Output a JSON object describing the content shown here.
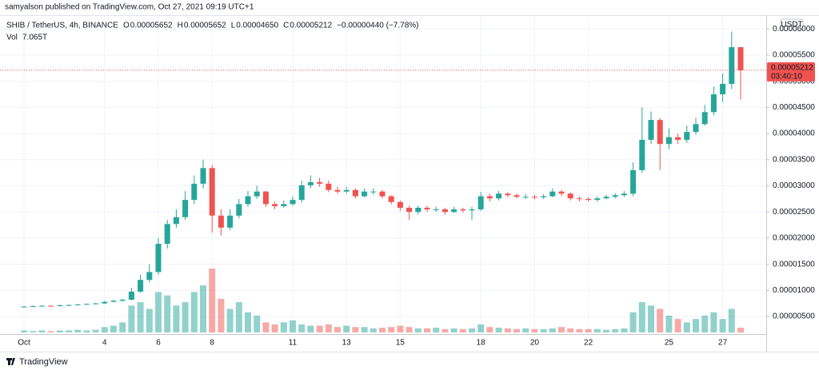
{
  "header": {
    "text": "samyalson published on TradingView.com, Oct 27, 2021 09:19 UTC+1"
  },
  "footer": {
    "brand": "TradingView"
  },
  "chart_data": {
    "type": "candlestick",
    "symbol": "SHIB / TetherUS, 4h, BINANCE",
    "ohlc_legend": [
      {
        "label": "O",
        "value": "0.00005652"
      },
      {
        "label": "H",
        "value": "0.00005652"
      },
      {
        "label": "L",
        "value": "0.00004650"
      },
      {
        "label": "C",
        "value": "0.00005212"
      }
    ],
    "change_label": "−0.00000440 (−7.78%)",
    "volume_legend": {
      "name": "Vol",
      "value_label": "7.065T"
    },
    "currency": "USDT",
    "last_price_label": "0.00005212",
    "countdown": "03:40:10",
    "up_color": "#26a69a",
    "down_color": "#ef5350",
    "grid": true,
    "categories": [
      "Oct",
      null,
      null,
      null,
      null,
      null,
      null,
      null,
      null,
      "4",
      null,
      null,
      null,
      null,
      null,
      "6",
      null,
      null,
      null,
      null,
      null,
      "8",
      null,
      null,
      null,
      null,
      null,
      null,
      null,
      null,
      "11",
      null,
      null,
      null,
      null,
      null,
      "13",
      null,
      null,
      null,
      null,
      null,
      "15",
      null,
      null,
      null,
      null,
      null,
      null,
      null,
      null,
      "18",
      null,
      null,
      null,
      null,
      null,
      "20",
      null,
      null,
      null,
      null,
      null,
      "22",
      null,
      null,
      null,
      null,
      null,
      null,
      null,
      null,
      "25",
      null,
      null,
      null,
      null,
      null,
      "27",
      null,
      null
    ],
    "open": [
      6.8e-06,
      6.9e-06,
      7e-06,
      7.05e-06,
      7e-06,
      7.15e-06,
      7.2e-06,
      7.3e-06,
      7.4e-06,
      7.5e-06,
      7.8e-06,
      8e-06,
      8.2e-06,
      9.75e-06,
      1.2e-05,
      1.35e-05,
      1.89e-05,
      2.27e-05,
      2.4e-05,
      2.73e-05,
      3.04e-05,
      3.34e-05,
      2.43e-05,
      2.2e-05,
      2.43e-05,
      2.65e-05,
      2.8e-05,
      2.89e-05,
      2.65e-05,
      2.61e-05,
      2.65e-05,
      2.73e-05,
      3.01e-05,
      3.07e-05,
      3.04e-05,
      2.92e-05,
      2.89e-05,
      2.92e-05,
      2.8e-05,
      2.89e-05,
      2.89e-05,
      2.8e-05,
      2.69e-05,
      2.58e-05,
      2.5e-05,
      2.58e-05,
      2.55e-05,
      2.55e-05,
      2.5e-05,
      2.55e-05,
      2.53e-05,
      2.55e-05,
      2.8e-05,
      2.76e-05,
      2.85e-05,
      2.82e-05,
      2.79e-05,
      2.79e-05,
      2.78e-05,
      2.8e-05,
      2.89e-05,
      2.85e-05,
      2.76e-05,
      2.75e-05,
      2.73e-05,
      2.76e-05,
      2.79e-05,
      2.82e-05,
      2.85e-05,
      3.3e-05,
      3.88e-05,
      4.26e-05,
      3.8e-05,
      3.93e-05,
      3.88e-05,
      4.03e-05,
      4.18e-05,
      4.41e-05,
      4.75e-05,
      4.95e-05,
      5.652e-05
    ],
    "high": [
      7e-06,
      7.1e-06,
      7.15e-06,
      7.15e-06,
      7.25e-06,
      7.3e-06,
      7.4e-06,
      7.5e-06,
      7.6e-06,
      8e-06,
      8.2e-06,
      8.4e-06,
      1.05e-05,
      1.3e-05,
      1.5e-05,
      2e-05,
      2.35e-05,
      2.55e-05,
      2.9e-05,
      3.2e-05,
      3.5e-05,
      3.4e-05,
      2.55e-05,
      2.55e-05,
      2.75e-05,
      2.9e-05,
      3e-05,
      2.9e-05,
      2.7e-05,
      2.72e-05,
      2.8e-05,
      3.1e-05,
      3.2e-05,
      3.15e-05,
      3.1e-05,
      2.98e-05,
      2.98e-05,
      2.95e-05,
      2.95e-05,
      2.95e-05,
      2.92e-05,
      2.82e-05,
      2.72e-05,
      2.62e-05,
      2.62e-05,
      2.62e-05,
      2.6e-05,
      2.58e-05,
      2.6e-05,
      2.58e-05,
      2.6e-05,
      2.88e-05,
      2.85e-05,
      2.9e-05,
      2.88e-05,
      2.85e-05,
      2.84e-05,
      2.83e-05,
      2.84e-05,
      2.95e-05,
      2.92e-05,
      2.87e-05,
      2.8e-05,
      2.78e-05,
      2.8e-05,
      2.83e-05,
      2.86e-05,
      2.9e-05,
      3.45e-05,
      4.5e-05,
      4.42e-05,
      4.3e-05,
      4.1e-05,
      4e-05,
      4.15e-05,
      4.3e-05,
      4.55e-05,
      4.9e-05,
      5.15e-05,
      5.95e-05,
      5.652e-05
    ],
    "low": [
      6.7e-06,
      6.8e-06,
      6.9e-06,
      6.9e-06,
      6.9e-06,
      7.05e-06,
      7.1e-06,
      7.2e-06,
      7.3e-06,
      7.4e-06,
      7.7e-06,
      7.9e-06,
      8.1e-06,
      9.5e-06,
      1.15e-05,
      1.3e-05,
      1.8e-05,
      2.2e-05,
      2.35e-05,
      2.65e-05,
      2.95e-05,
      2.1e-05,
      2.05e-05,
      2.15e-05,
      2.38e-05,
      2.6e-05,
      2.75e-05,
      2.6e-05,
      2.55e-05,
      2.58e-05,
      2.62e-05,
      2.68e-05,
      2.95e-05,
      2.98e-05,
      2.88e-05,
      2.85e-05,
      2.85e-05,
      2.76e-05,
      2.78e-05,
      2.83e-05,
      2.76e-05,
      2.65e-05,
      2.52e-05,
      2.35e-05,
      2.45e-05,
      2.5e-05,
      2.5e-05,
      2.45e-05,
      2.48e-05,
      2.49e-05,
      2.35e-05,
      2.52e-05,
      2.7e-05,
      2.72e-05,
      2.78e-05,
      2.76e-05,
      2.75e-05,
      2.74e-05,
      2.75e-05,
      2.78e-05,
      2.8e-05,
      2.72e-05,
      2.7e-05,
      2.7e-05,
      2.7e-05,
      2.74e-05,
      2.76e-05,
      2.79e-05,
      2.8e-05,
      3.25e-05,
      3.8e-05,
      3.3e-05,
      3.7e-05,
      3.8e-05,
      3.82e-05,
      3.98e-05,
      4.15e-05,
      4.35e-05,
      4.6e-05,
      4.85e-05,
      4.65e-05
    ],
    "close": [
      6.9e-06,
      7e-06,
      7.05e-06,
      7e-06,
      7.15e-06,
      7.2e-06,
      7.3e-06,
      7.4e-06,
      7.5e-06,
      7.8e-06,
      8e-06,
      8.2e-06,
      9.75e-06,
      1.2e-05,
      1.35e-05,
      1.89e-05,
      2.27e-05,
      2.4e-05,
      2.73e-05,
      3.04e-05,
      3.34e-05,
      2.43e-05,
      2.2e-05,
      2.43e-05,
      2.65e-05,
      2.8e-05,
      2.89e-05,
      2.65e-05,
      2.61e-05,
      2.65e-05,
      2.73e-05,
      3.01e-05,
      3.07e-05,
      3.04e-05,
      2.92e-05,
      2.89e-05,
      2.92e-05,
      2.8e-05,
      2.89e-05,
      2.89e-05,
      2.8e-05,
      2.69e-05,
      2.58e-05,
      2.5e-05,
      2.58e-05,
      2.55e-05,
      2.55e-05,
      2.5e-05,
      2.55e-05,
      2.53e-05,
      2.55e-05,
      2.8e-05,
      2.76e-05,
      2.85e-05,
      2.82e-05,
      2.79e-05,
      2.79e-05,
      2.78e-05,
      2.8e-05,
      2.89e-05,
      2.85e-05,
      2.76e-05,
      2.75e-05,
      2.73e-05,
      2.76e-05,
      2.79e-05,
      2.82e-05,
      2.85e-05,
      3.3e-05,
      3.88e-05,
      4.26e-05,
      3.8e-05,
      3.93e-05,
      3.88e-05,
      4.03e-05,
      4.18e-05,
      4.41e-05,
      4.75e-05,
      4.95e-05,
      5.652e-05,
      5.212e-05
    ],
    "volume": [
      3,
      2,
      3,
      2,
      3,
      3,
      4,
      3,
      4,
      8,
      10,
      15,
      40,
      45,
      35,
      60,
      55,
      40,
      45,
      60,
      70,
      95,
      50,
      35,
      45,
      30,
      25,
      15,
      12,
      15,
      18,
      12,
      10,
      10,
      12,
      8,
      10,
      8,
      8,
      6,
      7,
      8,
      10,
      8,
      6,
      6,
      7,
      5,
      6,
      5,
      6,
      12,
      8,
      7,
      6,
      5,
      6,
      5,
      5,
      6,
      8,
      6,
      5,
      5,
      5,
      4,
      5,
      6,
      30,
      45,
      40,
      35,
      25,
      20,
      15,
      20,
      25,
      30,
      20,
      35,
      7.065
    ],
    "ylim": [
      1.64e-06,
      6.249e-05
    ],
    "y2lim": [
      0,
      95
    ],
    "yticks": [
      {
        "value": 5e-06,
        "label": "0.00000500"
      },
      {
        "value": 1e-05,
        "label": "0.00001000"
      },
      {
        "value": 1.5e-05,
        "label": "0.00001500"
      },
      {
        "value": 2e-05,
        "label": "0.00002000"
      },
      {
        "value": 2.5e-05,
        "label": "0.00002500"
      },
      {
        "value": 3e-05,
        "label": "0.00003000"
      },
      {
        "value": 3.5e-05,
        "label": "0.00003500"
      },
      {
        "value": 4e-05,
        "label": "0.00004000"
      },
      {
        "value": 4.5e-05,
        "label": "0.00004500"
      },
      {
        "value": 5e-05,
        "label": "0.00005000"
      },
      {
        "value": 5.5e-05,
        "label": "0.00005500"
      },
      {
        "value": 6e-05,
        "label": "0.00006000"
      }
    ]
  }
}
